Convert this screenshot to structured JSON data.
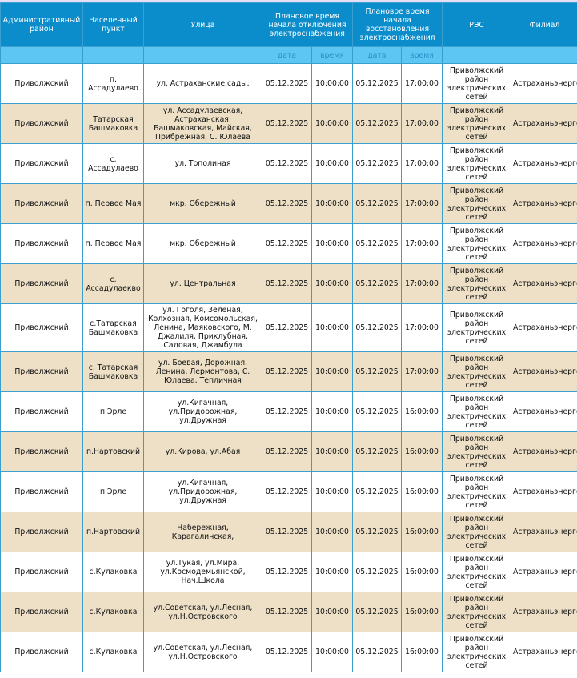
{
  "colors": {
    "header": "#0b8ccb",
    "subheader": "#5ec6f2",
    "row_alt": "#ede0c6",
    "border": "#3a9fcf"
  },
  "headers": {
    "district": "Административный район",
    "locality": "Населенный пункт",
    "street": "Улица",
    "off_time": "Плановое время начала отключения электроснабжения",
    "on_time": "Плановое время начала восстановления электроснабжения",
    "res": "РЭС",
    "branch": "Филиал",
    "date": "дата",
    "time": "время"
  },
  "rows": [
    {
      "district": "Приволжский",
      "locality": "п. Ассадулаево",
      "street": "ул. Астраханские сады.",
      "off_date": "05.12.2025",
      "off_time": "10:00:00",
      "on_date": "05.12.2025",
      "on_time": "17:00:00",
      "res": "Приволжский район электрических сетей",
      "branch": "Астраханьэнерго"
    },
    {
      "district": "Приволжский",
      "locality": "Татарская Башмаковка",
      "street": "ул. Ассадулаевская, Астраханская, Башмаковская, Майская, Прибрежная, С. Юлаева",
      "off_date": "05.12.2025",
      "off_time": "10:00:00",
      "on_date": "05.12.2025",
      "on_time": "17:00:00",
      "res": "Приволжский район электрических сетей",
      "branch": "Астраханьэнерго"
    },
    {
      "district": "Приволжский",
      "locality": "с. Ассадулаево",
      "street": "ул. Тополиная",
      "off_date": "05.12.2025",
      "off_time": "10:00:00",
      "on_date": "05.12.2025",
      "on_time": "17:00:00",
      "res": "Приволжский район электрических сетей",
      "branch": "Астраханьэнерго"
    },
    {
      "district": "Приволжский",
      "locality": "п. Первое Мая",
      "street": "мкр. Обережный",
      "off_date": "05.12.2025",
      "off_time": "10:00:00",
      "on_date": "05.12.2025",
      "on_time": "17:00:00",
      "res": "Приволжский район электрических сетей",
      "branch": "Астраханьэнерго"
    },
    {
      "district": "Приволжский",
      "locality": "п. Первое Мая",
      "street": "мкр. Обережный",
      "off_date": "05.12.2025",
      "off_time": "10:00:00",
      "on_date": "05.12.2025",
      "on_time": "17:00:00",
      "res": "Приволжский район электрических сетей",
      "branch": "Астраханьэнерго"
    },
    {
      "district": "Приволжский",
      "locality": "с. Ассадулаекво",
      "street": "ул. Центральная",
      "off_date": "05.12.2025",
      "off_time": "10:00:00",
      "on_date": "05.12.2025",
      "on_time": "17:00:00",
      "res": "Приволжский район электрических сетей",
      "branch": "Астраханьэнерго"
    },
    {
      "district": "Приволжский",
      "locality": "с.Татарская Башмаковка",
      "street": "ул. Гоголя, Зеленая, Колхозная, Комсомольская, Ленина, Маяковского, М. Джалиля, Приклубная, Садовая, Джамбула",
      "off_date": "05.12.2025",
      "off_time": "10:00:00",
      "on_date": "05.12.2025",
      "on_time": "17:00:00",
      "res": "Приволжский район электрических сетей",
      "branch": "Астраханьэнерго"
    },
    {
      "district": "Приволжский",
      "locality": "с. Татарская Башмаковка",
      "street": "ул. Боевая, Дорожная, Ленина, Лермонтова, С. Юлаева, Тепличная",
      "off_date": "05.12.2025",
      "off_time": "10:00:00",
      "on_date": "05.12.2025",
      "on_time": "17:00:00",
      "res": "Приволжский район электрических сетей",
      "branch": "Астраханьэнерго"
    },
    {
      "district": "Приволжский",
      "locality": "п.Эрле",
      "street": "ул.Кигачная, ул.Придорожная, ул.Дружная",
      "off_date": "05.12.2025",
      "off_time": "10:00:00",
      "on_date": "05.12.2025",
      "on_time": "16:00:00",
      "res": "Приволжский район электрических сетей",
      "branch": "Астраханьэнерго"
    },
    {
      "district": "Приволжский",
      "locality": "п.Нартовский",
      "street": "ул.Кирова, ул.Абая",
      "off_date": "05.12.2025",
      "off_time": "10:00:00",
      "on_date": "05.12.2025",
      "on_time": "16:00:00",
      "res": "Приволжский район электрических сетей",
      "branch": "Астраханьэнерго"
    },
    {
      "district": "Приволжский",
      "locality": "п.Эрле",
      "street": "ул.Кигачная, ул.Придорожная, ул.Дружная",
      "off_date": "05.12.2025",
      "off_time": "10:00:00",
      "on_date": "05.12.2025",
      "on_time": "16:00:00",
      "res": "Приволжский район электрических сетей",
      "branch": "Астраханьэнерго"
    },
    {
      "district": "Приволжский",
      "locality": "п.Нартовский",
      "street": "Набережная, Карагалинская,",
      "off_date": "05.12.2025",
      "off_time": "10:00:00",
      "on_date": "05.12.2025",
      "on_time": "16:00:00",
      "res": "Приволжский район электрических сетей",
      "branch": "Астраханьэнерго"
    },
    {
      "district": "Приволжский",
      "locality": "с.Кулаковка",
      "street": "ул.Тукая, ул.Мира, ул.Космодемьянской, Нач.Школа",
      "off_date": "05.12.2025",
      "off_time": "10:00:00",
      "on_date": "05.12.2025",
      "on_time": "16:00:00",
      "res": "Приволжский район электрических сетей",
      "branch": "Астраханьэнерго"
    },
    {
      "district": "Приволжский",
      "locality": "с.Кулаковка",
      "street": "ул.Советская, ул.Лесная, ул.Н.Островского",
      "off_date": "05.12.2025",
      "off_time": "10:00:00",
      "on_date": "05.12.2025",
      "on_time": "16:00:00",
      "res": "Приволжский район электрических сетей",
      "branch": "Астраханьэнерго"
    },
    {
      "district": "Приволжский",
      "locality": "с.Кулаковка",
      "street": "ул.Советская, ул.Лесная, ул.Н.Островского",
      "off_date": "05.12.2025",
      "off_time": "10:00:00",
      "on_date": "05.12.2025",
      "on_time": "16:00:00",
      "res": "Приволжский район электрических сетей",
      "branch": "Астраханьэнерго"
    }
  ]
}
